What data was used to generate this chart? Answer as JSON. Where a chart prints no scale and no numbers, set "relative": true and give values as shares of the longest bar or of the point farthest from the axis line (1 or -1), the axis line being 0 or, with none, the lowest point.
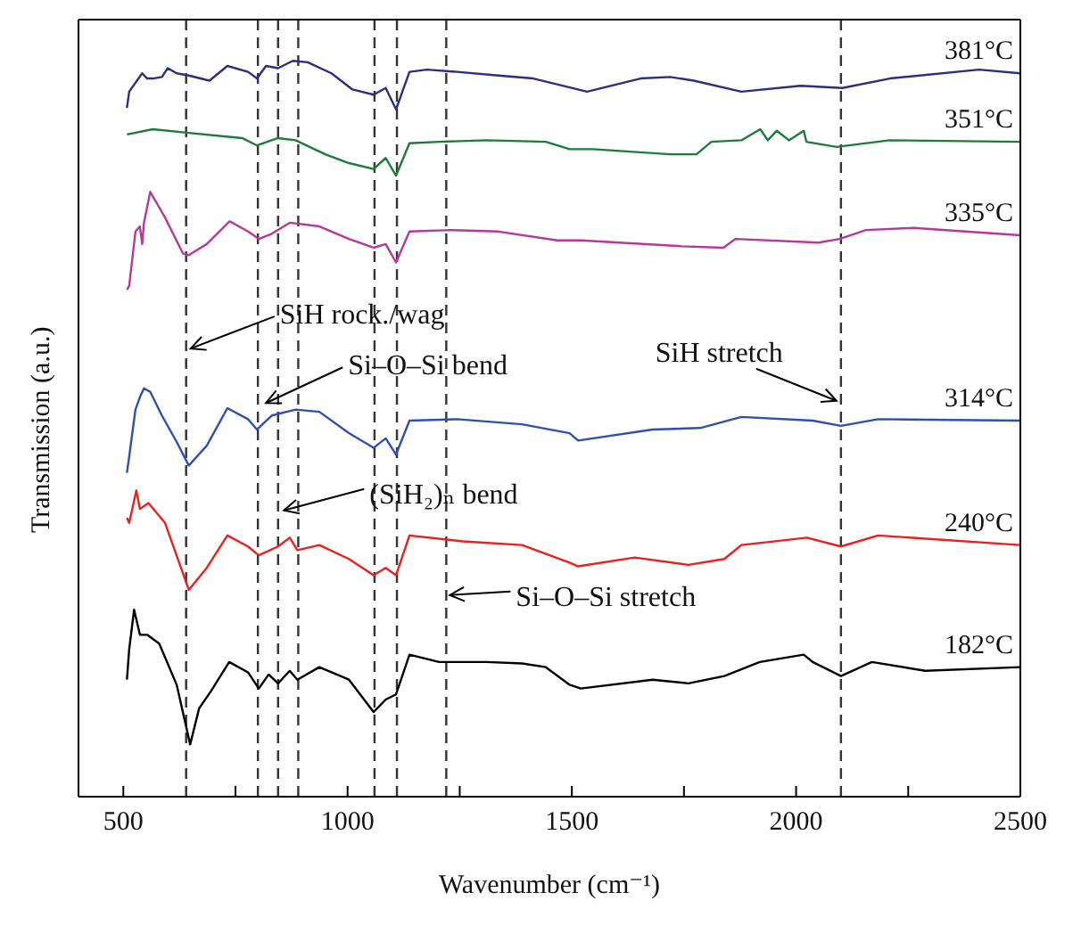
{
  "chart_data": {
    "type": "line",
    "relative": true,
    "xlabel": "Wavenumber (cm⁻¹)",
    "ylabel": "Transmission (a.u.)",
    "legend": false,
    "grid": false,
    "marker": "none",
    "line_style": "solid",
    "xlim": [
      400,
      2500
    ],
    "xticks": [
      500,
      {
        "value": 750,
        "label": null
      },
      1000,
      {
        "value": 1250,
        "label": null
      },
      1500,
      {
        "value": 1750,
        "label": null
      },
      2000,
      {
        "value": 2250,
        "label": null
      },
      2500
    ],
    "series": [
      {
        "name": "381°C",
        "color": "#2b2f7f",
        "x": [
          508,
          513,
          542,
          553,
          566,
          586,
          599,
          619,
          646,
          692,
          732,
          778,
          798,
          818,
          845,
          878,
          911,
          964,
          1011,
          1058,
          1085,
          1108,
          1138,
          1177,
          1244,
          1336,
          1414,
          1534,
          1653,
          1719,
          1772,
          1878,
          2010,
          2103,
          2209,
          2408,
          2500
        ],
        "values": [
          0.936,
          0.958,
          0.983,
          0.976,
          0.976,
          0.978,
          0.99,
          0.983,
          0.98,
          0.973,
          0.993,
          0.985,
          0.976,
          0.993,
          0.99,
          1.0,
          0.998,
          0.983,
          0.961,
          0.954,
          0.963,
          0.934,
          0.985,
          0.988,
          0.985,
          0.98,
          0.976,
          0.958,
          0.976,
          0.978,
          0.973,
          0.958,
          0.966,
          0.963,
          0.976,
          0.988,
          0.983
        ]
      },
      {
        "name": "351°C",
        "color": "#1e7b3a",
        "x": [
          508,
          566,
          646,
          765,
          798,
          845,
          884,
          950,
          1003,
          1058,
          1085,
          1108,
          1138,
          1204,
          1310,
          1442,
          1495,
          1547,
          1719,
          1778,
          1811,
          1878,
          1920,
          1937,
          1957,
          1984,
          2017,
          2023,
          2090,
          2209,
          2500
        ],
        "values": [
          0.9,
          0.907,
          0.902,
          0.895,
          0.885,
          0.895,
          0.892,
          0.873,
          0.861,
          0.853,
          0.868,
          0.844,
          0.888,
          0.89,
          0.892,
          0.89,
          0.88,
          0.88,
          0.873,
          0.873,
          0.89,
          0.892,
          0.907,
          0.892,
          0.905,
          0.892,
          0.905,
          0.89,
          0.883,
          0.892,
          0.89
        ]
      },
      {
        "name": "335°C",
        "color": "#b5399a",
        "x": [
          508,
          513,
          527,
          537,
          542,
          546,
          560,
          593,
          633,
          646,
          686,
          737,
          778,
          802,
          831,
          871,
          937,
          1003,
          1058,
          1085,
          1108,
          1138,
          1230,
          1336,
          1468,
          1520,
          1745,
          1838,
          1865,
          2050,
          2097,
          2156,
          2262,
          2500
        ],
        "values": [
          0.689,
          0.694,
          0.768,
          0.775,
          0.751,
          0.78,
          0.822,
          0.787,
          0.738,
          0.736,
          0.751,
          0.782,
          0.768,
          0.758,
          0.765,
          0.78,
          0.775,
          0.758,
          0.746,
          0.751,
          0.726,
          0.768,
          0.77,
          0.768,
          0.756,
          0.756,
          0.748,
          0.746,
          0.758,
          0.753,
          0.758,
          0.77,
          0.773,
          0.763
        ]
      },
      {
        "name": "314°C",
        "color": "#3050b0",
        "x": [
          508,
          513,
          527,
          537,
          546,
          560,
          586,
          619,
          646,
          686,
          732,
          778,
          798,
          831,
          884,
          937,
          1003,
          1058,
          1085,
          1108,
          1138,
          1244,
          1389,
          1495,
          1514,
          1680,
          1786,
          1878,
          2037,
          2100,
          2183,
          2500
        ],
        "values": [
          0.44,
          0.462,
          0.526,
          0.543,
          0.555,
          0.55,
          0.518,
          0.482,
          0.45,
          0.477,
          0.528,
          0.513,
          0.499,
          0.518,
          0.526,
          0.523,
          0.494,
          0.474,
          0.487,
          0.465,
          0.511,
          0.513,
          0.506,
          0.494,
          0.484,
          0.499,
          0.501,
          0.516,
          0.511,
          0.504,
          0.513,
          0.511
        ]
      },
      {
        "name": "240°C",
        "color": "#e8201e",
        "x": [
          508,
          513,
          529,
          537,
          556,
          593,
          646,
          686,
          732,
          778,
          802,
          845,
          871,
          888,
          937,
          1003,
          1058,
          1085,
          1108,
          1138,
          1257,
          1389,
          1495,
          1514,
          1640,
          1760,
          1840,
          1878,
          2024,
          2100,
          2183,
          2500
        ],
        "values": [
          0.379,
          0.372,
          0.416,
          0.391,
          0.399,
          0.372,
          0.281,
          0.311,
          0.355,
          0.34,
          0.328,
          0.34,
          0.352,
          0.335,
          0.342,
          0.323,
          0.301,
          0.311,
          0.301,
          0.355,
          0.347,
          0.342,
          0.318,
          0.313,
          0.325,
          0.315,
          0.323,
          0.342,
          0.352,
          0.34,
          0.355,
          0.342
        ]
      },
      {
        "name": "182°C",
        "color": "#000000",
        "x": [
          508,
          513,
          524,
          537,
          553,
          580,
          619,
          649,
          669,
          696,
          736,
          778,
          802,
          824,
          845,
          871,
          888,
          937,
          1003,
          1058,
          1085,
          1108,
          1138,
          1204,
          1310,
          1389,
          1442,
          1495,
          1520,
          1680,
          1760,
          1840,
          1919,
          2017,
          2037,
          2100,
          2169,
          2288,
          2500
        ],
        "values": [
          0.159,
          0.2,
          0.254,
          0.22,
          0.22,
          0.208,
          0.152,
          0.071,
          0.12,
          0.144,
          0.183,
          0.169,
          0.147,
          0.166,
          0.154,
          0.171,
          0.159,
          0.176,
          0.159,
          0.115,
          0.132,
          0.139,
          0.193,
          0.183,
          0.183,
          0.181,
          0.176,
          0.152,
          0.147,
          0.159,
          0.154,
          0.164,
          0.183,
          0.193,
          0.183,
          0.164,
          0.183,
          0.171,
          0.176
        ]
      }
    ],
    "ref_lines": [
      {
        "axis": "x",
        "value": 640,
        "color": "#333333",
        "line_style": "dashed"
      },
      {
        "axis": "x",
        "value": 800,
        "color": "#333333",
        "line_style": "dashed"
      },
      {
        "axis": "x",
        "value": 845,
        "color": "#333333",
        "line_style": "dashed"
      },
      {
        "axis": "x",
        "value": 890,
        "color": "#333333",
        "line_style": "dashed"
      },
      {
        "axis": "x",
        "value": 1060,
        "color": "#333333",
        "line_style": "dashed"
      },
      {
        "axis": "x",
        "value": 1110,
        "color": "#333333",
        "line_style": "dashed"
      },
      {
        "axis": "x",
        "value": 1220,
        "color": "#333333",
        "line_style": "dashed"
      },
      {
        "axis": "x",
        "value": 2100,
        "color": "#333333",
        "line_style": "dashed"
      }
    ],
    "annotations": [
      {
        "text": "SiH rock./wag",
        "x": 650,
        "y": 0.609
      },
      {
        "text": "Si–O–Si bend",
        "x": 818,
        "y": 0.535
      },
      {
        "text": "(SiH₂)ₙ bend",
        "x": 858,
        "y": 0.389
      },
      {
        "text": "Si–O–Si stretch",
        "x": 1228,
        "y": 0.274
      },
      {
        "text": "SiH stretch",
        "x": 2090,
        "y": 0.538
      }
    ]
  }
}
